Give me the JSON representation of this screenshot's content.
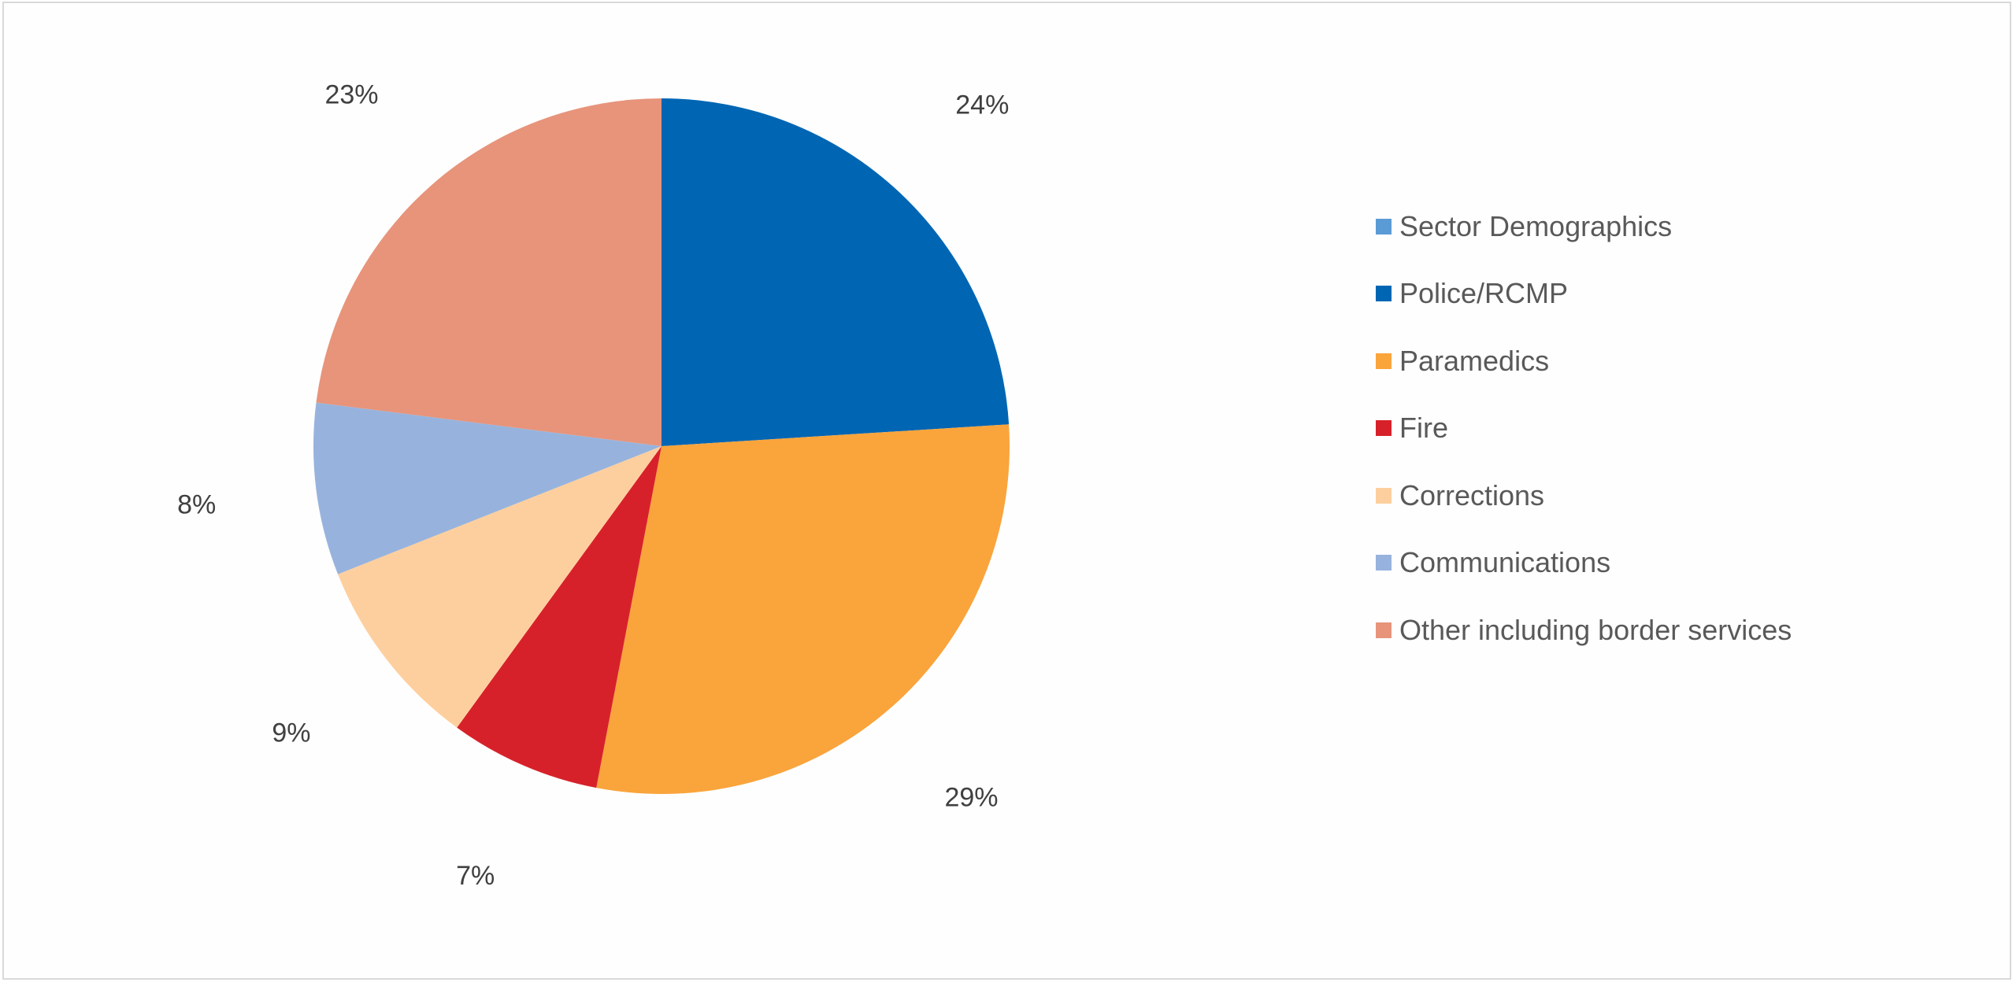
{
  "chart_data": {
    "type": "pie",
    "title": "",
    "slices": [
      {
        "name": "Sector Demographics",
        "value": 0,
        "label": "",
        "color": "#5b9bd5"
      },
      {
        "name": "Police/RCMP",
        "value": 24,
        "label": "24%",
        "color": "#0066b3"
      },
      {
        "name": "Paramedics",
        "value": 29,
        "label": "29%",
        "color": "#faa43c"
      },
      {
        "name": "Fire",
        "value": 7,
        "label": "7%",
        "color": "#d7212a"
      },
      {
        "name": "Corrections",
        "value": 9,
        "label": "9%",
        "color": "#fecf9e"
      },
      {
        "name": "Communications",
        "value": 8,
        "label": "8%",
        "color": "#97b3dd"
      },
      {
        "name": "Other including border services",
        "value": 23,
        "label": "23%",
        "color": "#e7947b"
      }
    ],
    "start_angle": "12 o'clock",
    "direction": "clockwise",
    "legend_position": "right",
    "data_labels": "outside"
  }
}
